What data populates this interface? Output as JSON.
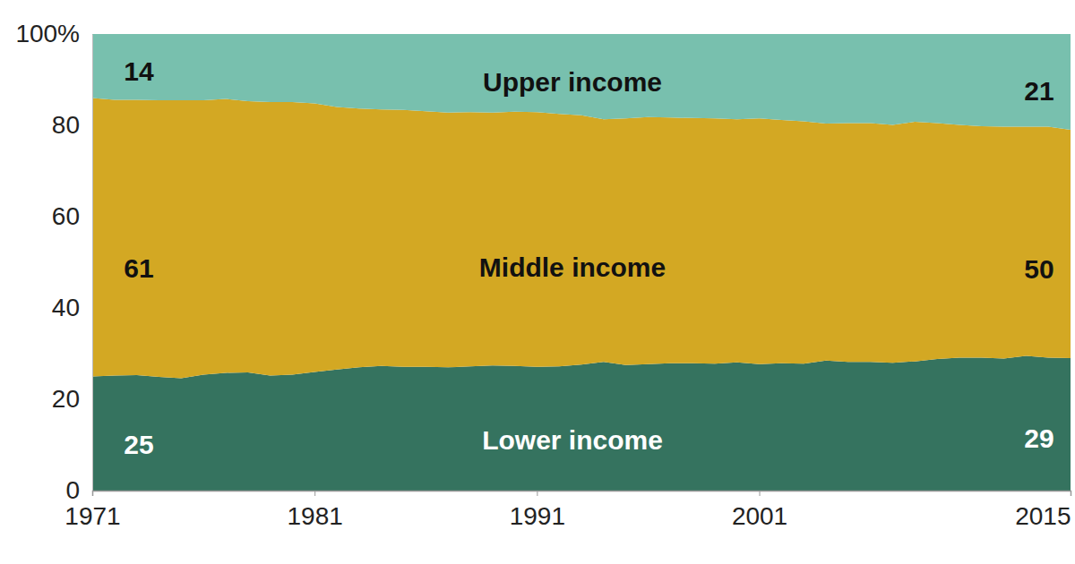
{
  "chart_data": {
    "type": "area",
    "stacked": true,
    "x": [
      1971,
      1972,
      1973,
      1974,
      1975,
      1976,
      1977,
      1978,
      1979,
      1980,
      1981,
      1982,
      1983,
      1984,
      1985,
      1986,
      1987,
      1988,
      1989,
      1990,
      1991,
      1992,
      1993,
      1994,
      1995,
      1996,
      1997,
      1998,
      1999,
      2000,
      2001,
      2002,
      2003,
      2004,
      2005,
      2006,
      2007,
      2008,
      2009,
      2010,
      2011,
      2012,
      2013,
      2014,
      2015
    ],
    "xlim": [
      1971,
      2015
    ],
    "xticks": [
      1971,
      1981,
      1991,
      2001,
      2015
    ],
    "ylim": [
      0,
      100
    ],
    "yticks": [
      0,
      20,
      40,
      60,
      80,
      {
        "value": 100,
        "label": "100%"
      }
    ],
    "grid": false,
    "series": [
      {
        "name": "Lower income",
        "color": "#35735f",
        "values": [
          25,
          25.2,
          25.3,
          24.9,
          24.6,
          25.4,
          25.8,
          25.9,
          25.2,
          25.4,
          26.0,
          26.5,
          27.0,
          27.3,
          27.1,
          27.1,
          27.0,
          27.2,
          27.4,
          27.3,
          27.1,
          27.2,
          27.6,
          28.2,
          27.5,
          27.7,
          27.9,
          27.9,
          27.8,
          28.1,
          27.7,
          27.9,
          27.8,
          28.5,
          28.2,
          28.2,
          28.0,
          28.3,
          28.8,
          29.1,
          29.1,
          28.9,
          29.5,
          29.1,
          29
        ],
        "value_labels": [
          "25",
          null,
          null,
          null,
          null,
          null,
          null,
          null,
          null,
          null,
          null,
          null,
          null,
          null,
          null,
          null,
          null,
          null,
          null,
          null,
          null,
          null,
          null,
          null,
          null,
          null,
          null,
          null,
          null,
          null,
          null,
          null,
          null,
          null,
          null,
          null,
          null,
          null,
          null,
          null,
          null,
          null,
          null,
          null,
          "29"
        ]
      },
      {
        "name": "Middle income",
        "color": "#d3a823",
        "values": [
          61,
          60.4,
          60.3,
          60.6,
          60.9,
          60.1,
          60.0,
          59.4,
          59.9,
          59.7,
          58.8,
          57.5,
          56.7,
          56.2,
          56.3,
          56.0,
          55.8,
          55.7,
          55.4,
          55.7,
          55.8,
          55.3,
          54.6,
          53.1,
          54.0,
          54.1,
          53.8,
          53.7,
          53.7,
          53.2,
          53.8,
          53.3,
          53.1,
          51.9,
          52.3,
          52.3,
          52.1,
          52.5,
          51.7,
          51.0,
          50.7,
          50.8,
          50.2,
          50.6,
          50
        ],
        "value_labels": [
          "61",
          null,
          null,
          null,
          null,
          null,
          null,
          null,
          null,
          null,
          null,
          null,
          null,
          null,
          null,
          null,
          null,
          null,
          null,
          null,
          null,
          null,
          null,
          null,
          null,
          null,
          null,
          null,
          null,
          null,
          null,
          null,
          null,
          null,
          null,
          null,
          null,
          null,
          null,
          null,
          null,
          null,
          null,
          null,
          "50"
        ]
      },
      {
        "name": "Upper income",
        "color": "#78c0ae",
        "values": [
          14,
          14.4,
          14.4,
          14.5,
          14.5,
          14.5,
          14.2,
          14.7,
          14.9,
          14.9,
          15.2,
          16.0,
          16.3,
          16.5,
          16.6,
          16.9,
          17.2,
          17.1,
          17.2,
          17.0,
          17.1,
          17.5,
          17.8,
          18.7,
          18.5,
          18.2,
          18.3,
          18.4,
          18.5,
          18.7,
          18.5,
          18.8,
          19.1,
          19.6,
          19.5,
          19.5,
          19.9,
          19.2,
          19.5,
          19.9,
          20.2,
          20.3,
          20.3,
          20.3,
          21
        ],
        "value_labels": [
          "14",
          null,
          null,
          null,
          null,
          null,
          null,
          null,
          null,
          null,
          null,
          null,
          null,
          null,
          null,
          null,
          null,
          null,
          null,
          null,
          null,
          null,
          null,
          null,
          null,
          null,
          null,
          null,
          null,
          null,
          null,
          null,
          null,
          null,
          null,
          null,
          null,
          null,
          null,
          null,
          null,
          null,
          null,
          null,
          "21"
        ]
      }
    ]
  }
}
